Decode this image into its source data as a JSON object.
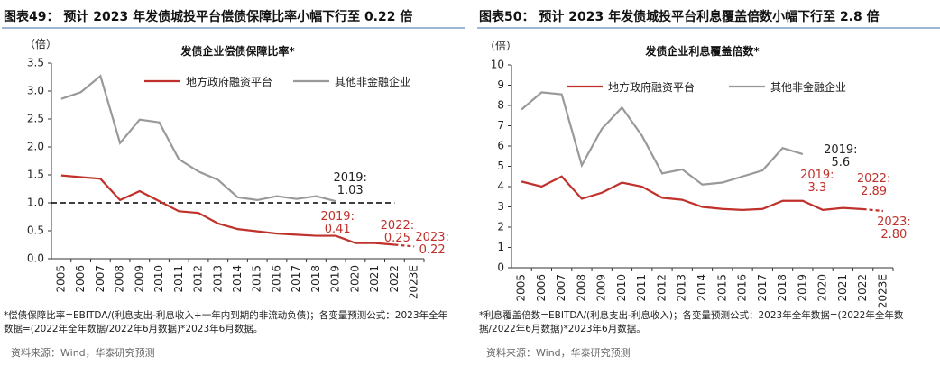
{
  "chart_data": [
    {
      "type": "line",
      "title": "图表49：  预计 2023 年发债城投平台偿债保障比率小幅下行至 0.22 倍",
      "subtitle": "发债企业偿债保障比率*",
      "y_label": "（倍）",
      "categories": [
        "2005",
        "2006",
        "2007",
        "2008",
        "2009",
        "2010",
        "2011",
        "2012",
        "2013",
        "2014",
        "2015",
        "2016",
        "2017",
        "2018",
        "2019",
        "2020",
        "2021",
        "2022",
        "2023E"
      ],
      "series": [
        {
          "name": "地方政府融资平台",
          "color": "#c0312b",
          "dash_last": true,
          "values": [
            1.49,
            1.46,
            1.43,
            1.05,
            1.21,
            1.03,
            0.85,
            0.82,
            0.63,
            0.53,
            0.49,
            0.45,
            0.43,
            0.41,
            0.41,
            0.28,
            0.28,
            0.25,
            0.22
          ],
          "value_labels": [
            null,
            null,
            null,
            null,
            null,
            null,
            null,
            null,
            null,
            null,
            null,
            null,
            null,
            null,
            "2019:\n0.41",
            null,
            null,
            "2022:\n0.25",
            "2023:\n0.22"
          ]
        },
        {
          "name": "其他非金融企业",
          "color": "#999999",
          "values": [
            2.86,
            2.98,
            3.27,
            2.07,
            2.49,
            2.44,
            1.78,
            1.56,
            1.41,
            1.1,
            1.05,
            1.12,
            1.07,
            1.12,
            1.03,
            null,
            null,
            null,
            null
          ],
          "value_labels": [
            null,
            null,
            null,
            null,
            null,
            null,
            null,
            null,
            null,
            null,
            null,
            null,
            null,
            null,
            "2019:\n1.03",
            null,
            null,
            null,
            null
          ]
        }
      ],
      "reference_line": 1,
      "ylim": [
        0,
        3.5
      ],
      "yticks": [
        {
          "value": 0,
          "label": "0.0"
        },
        0.5,
        {
          "value": 1,
          "label": "1.0"
        },
        1.5,
        {
          "value": 2,
          "label": "2.0"
        },
        2.5,
        {
          "value": 3,
          "label": "3.0"
        },
        3.5
      ],
      "legend": "top",
      "note": "*偿债保障比率=EBITDA/(利息支出-利息收入+一年内到期的非流动负债)；各变量预测公式：2023年全年数据=(2022年全年数据/2022年6月数据)*2023年6月数据。",
      "source": "资料来源：Wind，华泰研究预测"
    },
    {
      "type": "line",
      "title": "图表50：  预计 2023 年发债城投平台利息覆盖倍数小幅下行至 2.8 倍",
      "subtitle": "发债企业利息覆盖倍数*",
      "y_label": "（倍）",
      "categories": [
        "2005",
        "2006",
        "2007",
        "2008",
        "2009",
        "2010",
        "2011",
        "2012",
        "2013",
        "2014",
        "2015",
        "2016",
        "2017",
        "2018",
        "2019",
        "2020",
        "2021",
        "2022",
        "2023E"
      ],
      "series": [
        {
          "name": "地方政府融资平台",
          "color": "#c0312b",
          "dash_last": true,
          "values": [
            4.25,
            4.0,
            4.5,
            3.4,
            3.7,
            4.2,
            4.0,
            3.45,
            3.35,
            3.0,
            2.9,
            2.85,
            2.9,
            3.3,
            3.3,
            2.85,
            2.95,
            2.89,
            2.8
          ],
          "value_labels": [
            null,
            null,
            null,
            null,
            null,
            null,
            null,
            null,
            null,
            null,
            null,
            null,
            null,
            null,
            "2019:\n3.3",
            null,
            null,
            "2022:\n2.89",
            "2023:\n2.80"
          ]
        },
        {
          "name": "其他非金融企业",
          "color": "#999999",
          "values": [
            7.8,
            8.65,
            8.55,
            5.05,
            6.85,
            7.9,
            6.5,
            4.65,
            4.85,
            4.1,
            4.2,
            4.5,
            4.8,
            5.9,
            5.6,
            null,
            null,
            null,
            null
          ],
          "value_labels": [
            null,
            null,
            null,
            null,
            null,
            null,
            null,
            null,
            null,
            null,
            null,
            null,
            null,
            null,
            "2019:\n5.6",
            null,
            null,
            null,
            null
          ]
        }
      ],
      "ylim": [
        0,
        10
      ],
      "yticks": [
        0,
        1,
        2,
        3,
        4,
        5,
        6,
        7,
        8,
        9,
        10
      ],
      "legend": "top",
      "note": "*利息覆盖倍数=EBITDA/(利息支出-利息收入)；各变量预测公式：2023年全年数据=(2022年全年数据/2022年6月数据)*2023年6月数据。",
      "source": "资料来源：Wind，华泰研究预测"
    }
  ]
}
